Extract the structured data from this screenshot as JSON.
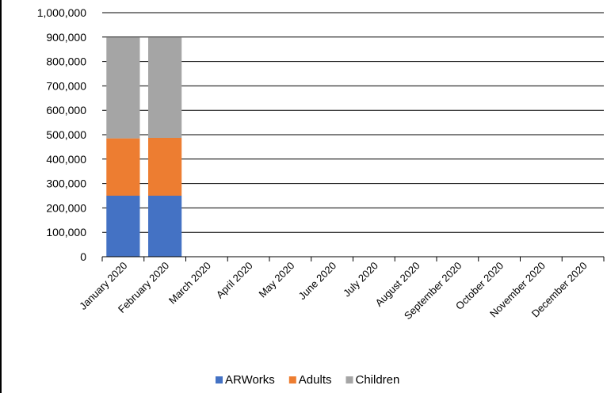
{
  "chart_data": {
    "type": "bar",
    "stacked": true,
    "title": "",
    "xlabel": "",
    "ylabel": "",
    "ylim": [
      0,
      1000000
    ],
    "yticks": [
      0,
      100000,
      200000,
      300000,
      400000,
      500000,
      600000,
      700000,
      800000,
      900000,
      1000000
    ],
    "ytick_labels": [
      "0",
      "100,000",
      "200,000",
      "300,000",
      "400,000",
      "500,000",
      "600,000",
      "700,000",
      "800,000",
      "900,000",
      "1,000,000"
    ],
    "categories": [
      "January 2020",
      "February 2020",
      "March 2020",
      "April 2020",
      "May 2020",
      "June 2020",
      "July 2020",
      "August 2020",
      "September 2020",
      "October 2020",
      "November 2020",
      "December 2020"
    ],
    "series": [
      {
        "name": "ARWorks",
        "color": "#4472c4",
        "values": [
          250000,
          250000,
          0,
          0,
          0,
          0,
          0,
          0,
          0,
          0,
          0,
          0
        ]
      },
      {
        "name": "Adults",
        "color": "#ed7d31",
        "values": [
          235000,
          237000,
          0,
          0,
          0,
          0,
          0,
          0,
          0,
          0,
          0,
          0
        ]
      },
      {
        "name": "Children",
        "color": "#a5a5a5",
        "values": [
          413000,
          411000,
          0,
          0,
          0,
          0,
          0,
          0,
          0,
          0,
          0,
          0
        ]
      }
    ],
    "grid": true,
    "legend_position": "bottom"
  }
}
